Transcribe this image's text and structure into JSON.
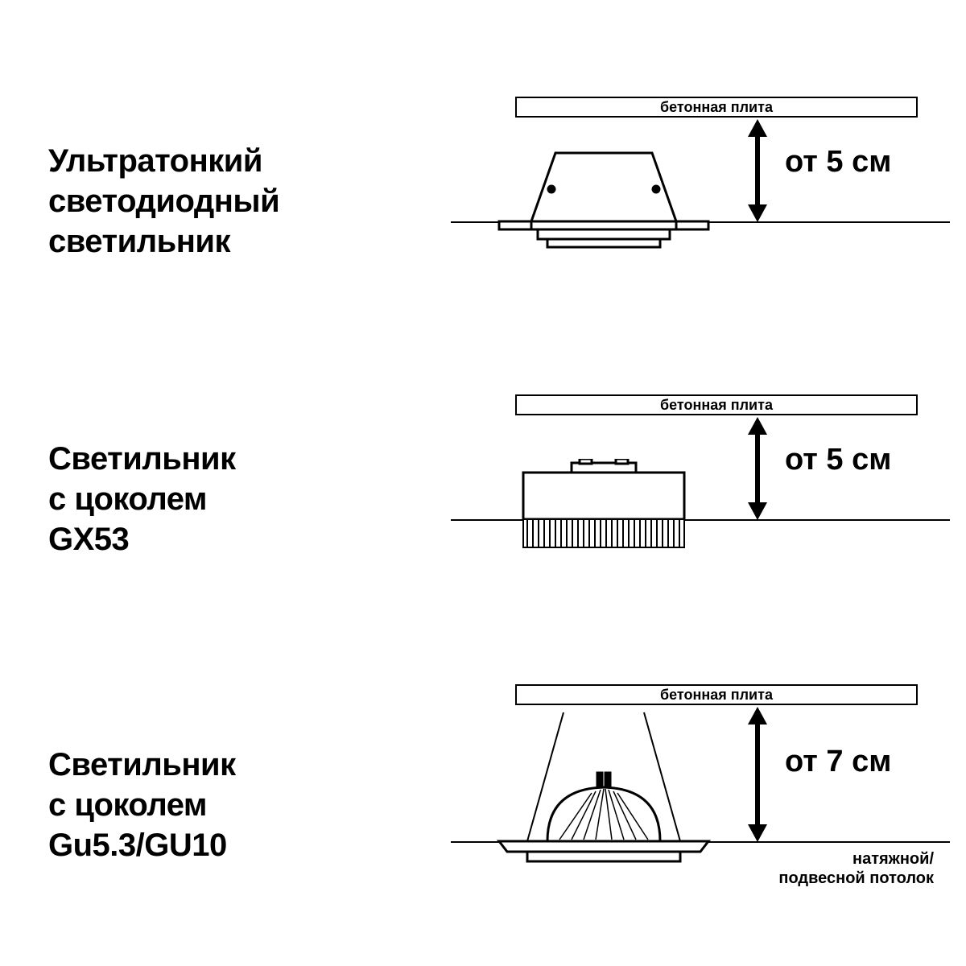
{
  "colors": {
    "stroke": "#000000",
    "bg": "#ffffff"
  },
  "label_font_size": 40,
  "dim_font_size": 38,
  "slab_font_size": 18,
  "rows": [
    {
      "label": "Ультратонкий\nсветодиодный\nсветильник",
      "slab_label": "бетонная плита",
      "dimension": "от 5 см",
      "fixture": "ultrathin"
    },
    {
      "label": "Светильник\nс цоколем\nGX53",
      "slab_label": "бетонная плита",
      "dimension": "от 5 см",
      "fixture": "gx53"
    },
    {
      "label": "Светильник\nс цоколем\nGu5.3/GU10",
      "slab_label": "бетонная плита",
      "dimension": "от 7 см",
      "fixture": "gu10",
      "ceiling_note": "натяжной/\nподвесной потолок"
    }
  ]
}
